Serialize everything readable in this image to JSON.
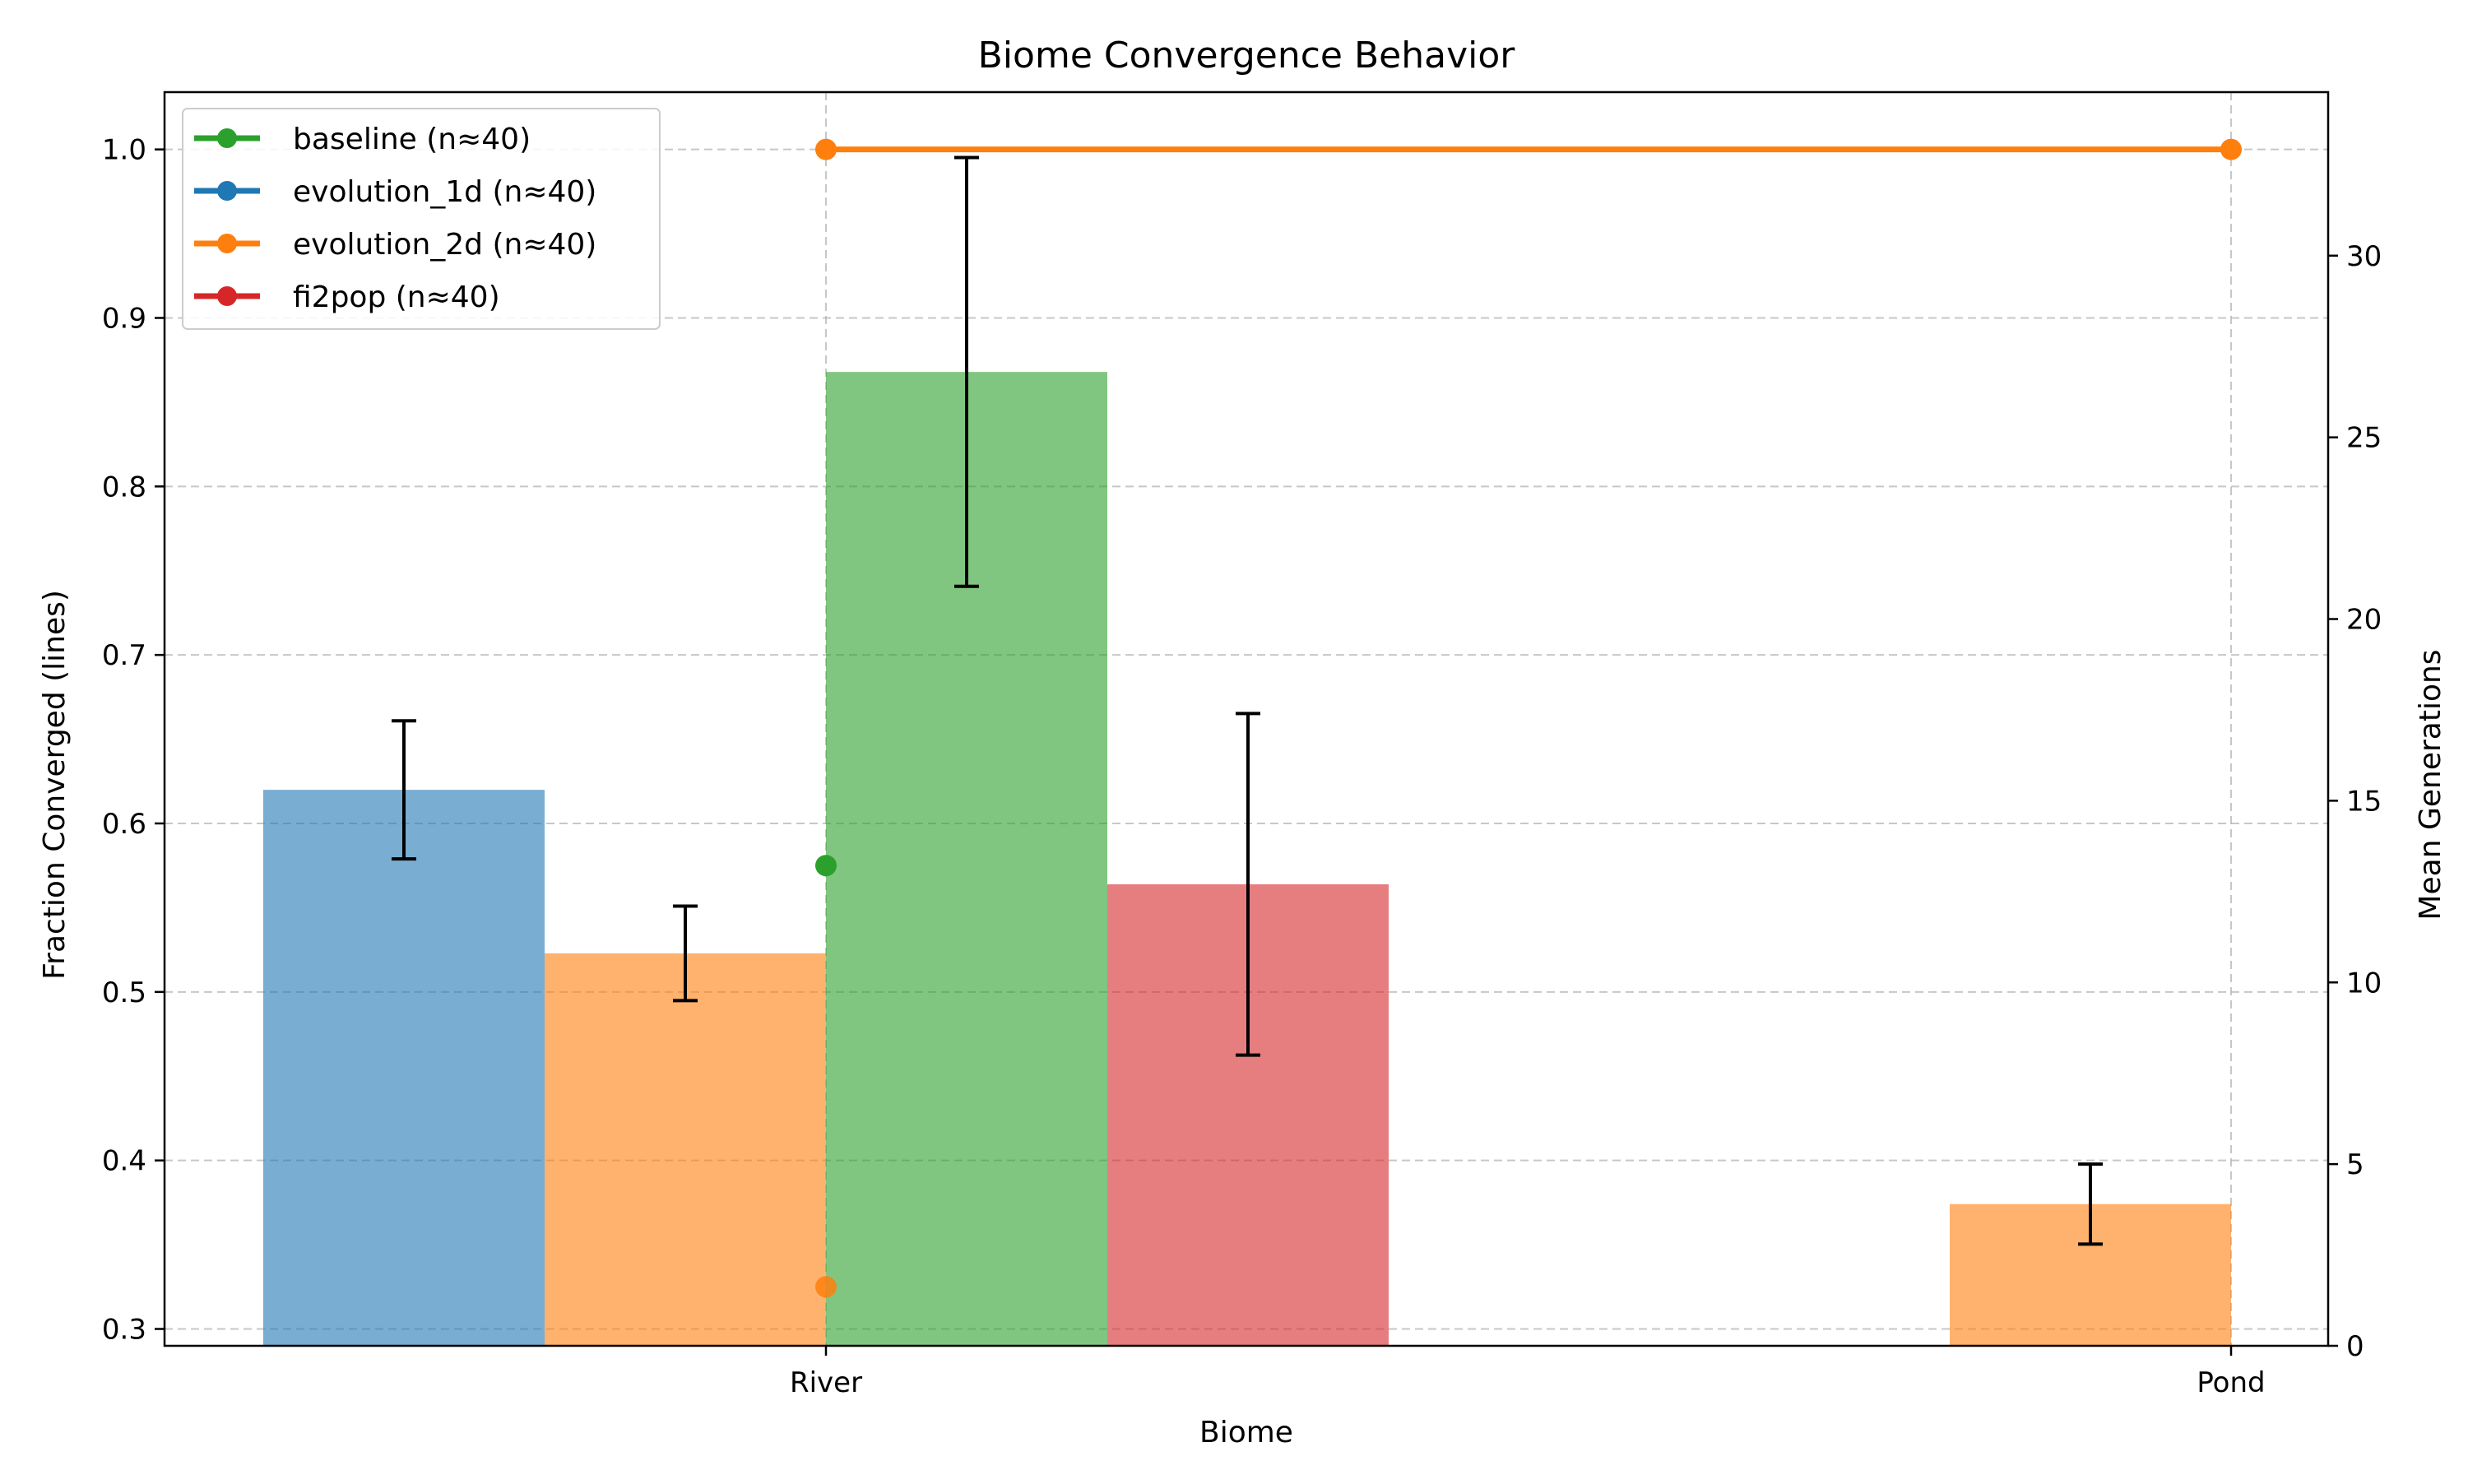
{
  "chart_data": {
    "type": "bar",
    "title": "Biome Convergence Behavior",
    "xlabel": "Biome",
    "ylabel_left": "Fraction Converged (lines)",
    "ylabel_right": "Mean Generations",
    "categories": [
      "River",
      "Pond"
    ],
    "ylim_left": [
      0.29,
      1.034
    ],
    "ylim_right": [
      0,
      34.5
    ],
    "yticks_left": [
      "0.3",
      "0.4",
      "0.5",
      "0.6",
      "0.7",
      "0.8",
      "0.9",
      "1.0"
    ],
    "yticks_right": [
      "0",
      "5",
      "10",
      "15",
      "20",
      "25",
      "30"
    ],
    "grid": true,
    "legend_position": "top-left",
    "colors": {
      "baseline": "#2ca02c",
      "evolution_1d": "#1f77b4",
      "evolution_2d": "#ff7f0e",
      "fi2pop": "#d62728"
    },
    "bar_series": [
      {
        "algorithm": "evolution_1d",
        "offset": -2,
        "values": [
          15.3,
          null
        ],
        "err": [
          1.9,
          null
        ]
      },
      {
        "algorithm": "evolution_2d",
        "offset": -1,
        "values": [
          10.8,
          3.9
        ],
        "err": [
          1.3,
          1.1
        ]
      },
      {
        "algorithm": "baseline",
        "offset": 0,
        "values": [
          26.8,
          null
        ],
        "err": [
          5.9,
          null
        ]
      },
      {
        "algorithm": "fi2pop",
        "offset": 1,
        "values": [
          12.7,
          null
        ],
        "err": [
          4.7,
          null
        ]
      }
    ],
    "line_series": [
      {
        "name": "baseline (n≈40)",
        "algorithm": "baseline",
        "values": [
          0.575,
          null
        ]
      },
      {
        "name": "evolution_1d (n≈40)",
        "algorithm": "evolution_1d",
        "values": [
          null,
          null
        ]
      },
      {
        "name": "evolution_2d (n≈40)",
        "algorithm": "evolution_2d",
        "values": [
          1.0,
          1.0
        ]
      },
      {
        "name": "fi2pop (n≈40)",
        "algorithm": "fi2pop",
        "values": [
          null,
          null
        ]
      }
    ],
    "extra_points": [
      {
        "algorithm": "evolution_2d",
        "category": "River",
        "value": 0.325
      }
    ]
  }
}
